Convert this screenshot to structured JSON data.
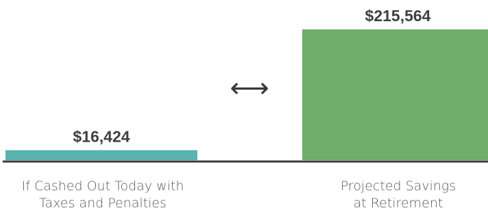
{
  "chart_data": {
    "type": "bar",
    "categories": [
      "If Cashed Out Today with\nTaxes and Penalties",
      "Projected Savings\nat Retirement"
    ],
    "values": [
      16424,
      215564
    ],
    "value_labels": [
      "$16,424",
      "$215,564"
    ],
    "colors": [
      "#5ab3ad",
      "#6fae6a"
    ],
    "axis_color": "#3a3a3a",
    "label_color": "#5b5b5b",
    "value_label_color": "#3f3f3f",
    "comparison_symbol": "⟷",
    "ylim": [
      0,
      215564
    ],
    "grid": false,
    "legend": "none"
  }
}
